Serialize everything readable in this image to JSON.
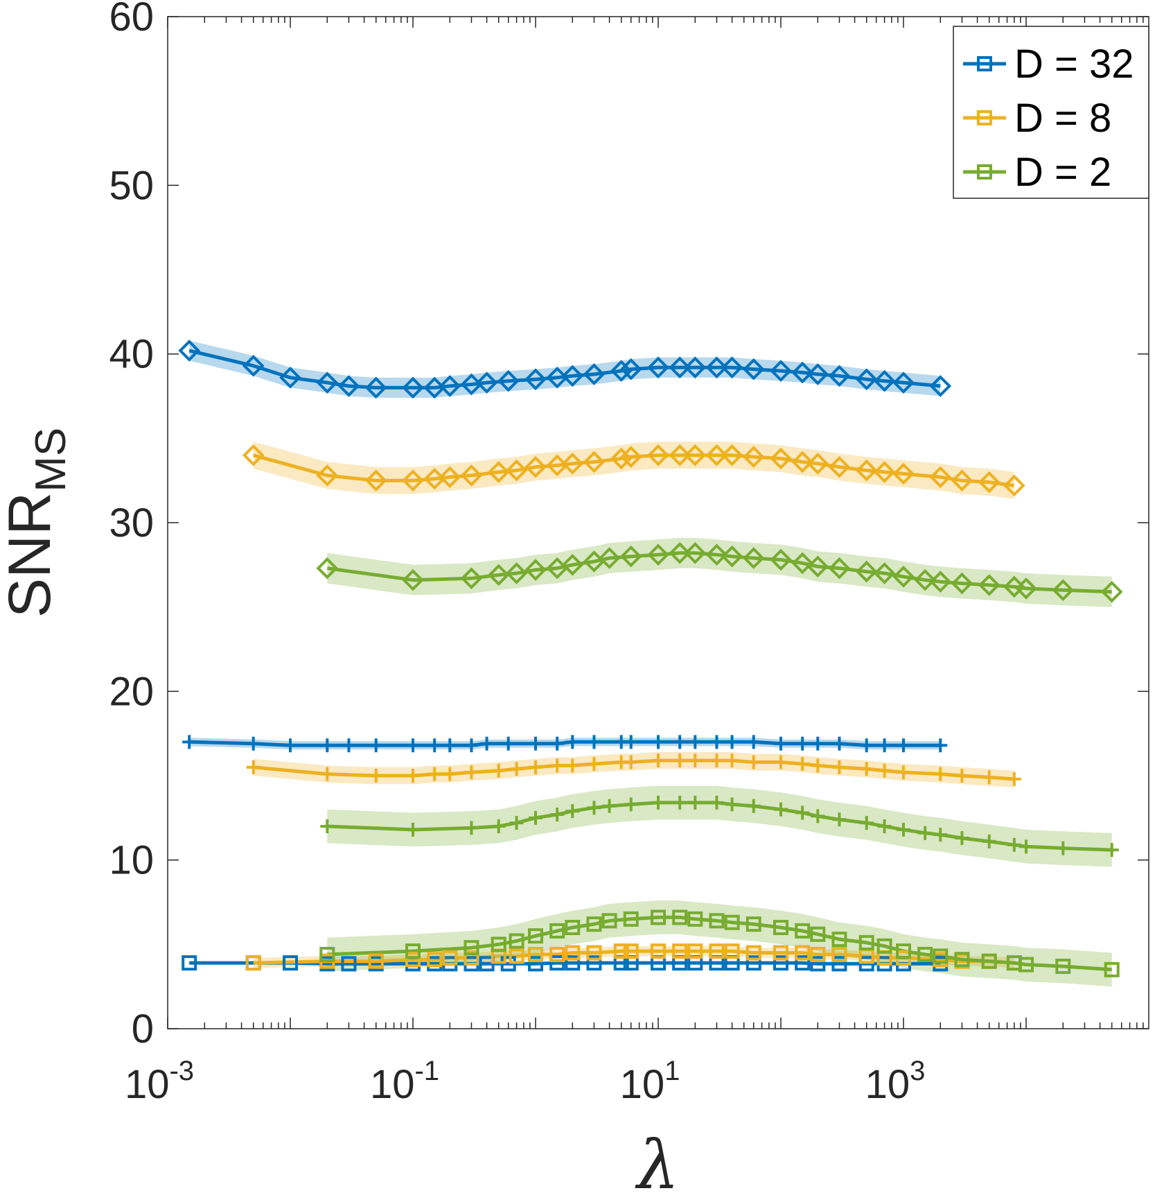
{
  "chart_data": {
    "type": "line",
    "xlabel": "λ",
    "ylabel": "SNR",
    "ylabel_subscript": "MS",
    "xscale": "log",
    "xlim": [
      0.001,
      100000
    ],
    "ylim": [
      0,
      60
    ],
    "xticks": [
      {
        "value": 0.001,
        "base": "10",
        "exp": "-3"
      },
      {
        "value": 0.1,
        "base": "10",
        "exp": "-1"
      },
      {
        "value": 10,
        "base": "10",
        "exp": "1"
      },
      {
        "value": 1000,
        "base": "10",
        "exp": "3"
      }
    ],
    "yticks": [
      "0",
      "10",
      "20",
      "30",
      "40",
      "50",
      "60"
    ],
    "grid": false,
    "legend_position": "top-right",
    "legend": [
      {
        "label": "D = 32",
        "color": "#0072BD"
      },
      {
        "label": "D = 8",
        "color": "#EDB120"
      },
      {
        "label": "D = 2",
        "color": "#77AC30"
      }
    ],
    "series": [
      {
        "D": "32",
        "color": "#0072BD",
        "marker": "diamond",
        "x": [
          0.0015,
          0.005,
          0.01,
          0.02,
          0.03,
          0.05,
          0.1,
          0.15,
          0.2,
          0.3,
          0.4,
          0.6,
          1,
          1.5,
          2,
          3,
          5,
          6,
          10,
          15,
          20,
          30,
          40,
          60,
          100,
          150,
          200,
          300,
          500,
          700,
          1000,
          2000
        ],
        "y": [
          40.2,
          39.3,
          38.6,
          38.3,
          38.1,
          38.0,
          38.0,
          38.0,
          38.1,
          38.2,
          38.3,
          38.4,
          38.5,
          38.6,
          38.7,
          38.8,
          39.0,
          39.1,
          39.2,
          39.2,
          39.2,
          39.2,
          39.2,
          39.1,
          39.0,
          38.9,
          38.8,
          38.7,
          38.5,
          38.4,
          38.3,
          38.1
        ],
        "band": 0.6
      },
      {
        "D": "8",
        "color": "#EDB120",
        "marker": "diamond",
        "x": [
          0.005,
          0.02,
          0.05,
          0.1,
          0.15,
          0.2,
          0.3,
          0.5,
          0.7,
          1,
          1.5,
          2,
          3,
          5,
          6,
          10,
          15,
          20,
          30,
          40,
          60,
          100,
          150,
          200,
          300,
          500,
          700,
          1000,
          2000,
          3000,
          5000,
          8000
        ],
        "y": [
          34.0,
          32.8,
          32.5,
          32.5,
          32.6,
          32.7,
          32.8,
          33.0,
          33.1,
          33.3,
          33.4,
          33.5,
          33.6,
          33.8,
          33.9,
          34.0,
          34.0,
          34.0,
          34.0,
          34.0,
          33.9,
          33.8,
          33.6,
          33.5,
          33.3,
          33.1,
          33.0,
          32.9,
          32.7,
          32.5,
          32.4,
          32.2
        ],
        "band": 0.8
      },
      {
        "D": "2",
        "color": "#77AC30",
        "marker": "diamond",
        "x": [
          0.02,
          0.1,
          0.3,
          0.5,
          0.7,
          1,
          1.5,
          2,
          3,
          4,
          6,
          10,
          15,
          20,
          30,
          40,
          60,
          100,
          150,
          200,
          300,
          500,
          700,
          1000,
          1500,
          2000,
          3000,
          5000,
          8000,
          10000,
          20000,
          50000
        ],
        "y": [
          27.3,
          26.6,
          26.7,
          26.9,
          27.0,
          27.2,
          27.3,
          27.5,
          27.7,
          27.9,
          28.0,
          28.1,
          28.2,
          28.2,
          28.1,
          28.0,
          27.9,
          27.8,
          27.6,
          27.4,
          27.3,
          27.1,
          27.0,
          26.8,
          26.6,
          26.5,
          26.4,
          26.3,
          26.2,
          26.1,
          26.0,
          25.9
        ],
        "band": 0.9
      },
      {
        "D": "32",
        "color": "#0072BD",
        "marker": "plus",
        "x": [
          0.0015,
          0.005,
          0.01,
          0.02,
          0.03,
          0.05,
          0.1,
          0.15,
          0.2,
          0.3,
          0.4,
          0.6,
          1,
          1.5,
          2,
          3,
          5,
          6,
          10,
          15,
          20,
          30,
          40,
          60,
          100,
          150,
          200,
          300,
          500,
          700,
          1000,
          2000
        ],
        "y": [
          17.0,
          16.9,
          16.8,
          16.8,
          16.8,
          16.8,
          16.8,
          16.8,
          16.8,
          16.8,
          16.9,
          16.9,
          16.9,
          16.9,
          17.0,
          17.0,
          17.0,
          17.0,
          17.0,
          17.0,
          17.0,
          17.0,
          17.0,
          17.0,
          16.9,
          16.9,
          16.9,
          16.9,
          16.8,
          16.8,
          16.8,
          16.8
        ],
        "band": 0.25
      },
      {
        "D": "8",
        "color": "#EDB120",
        "marker": "plus",
        "x": [
          0.005,
          0.02,
          0.05,
          0.1,
          0.15,
          0.2,
          0.3,
          0.5,
          0.7,
          1,
          1.5,
          2,
          3,
          5,
          6,
          10,
          15,
          20,
          30,
          40,
          60,
          100,
          150,
          200,
          300,
          500,
          700,
          1000,
          2000,
          3000,
          5000,
          8000
        ],
        "y": [
          15.5,
          15.1,
          15.0,
          15.0,
          15.1,
          15.1,
          15.2,
          15.3,
          15.4,
          15.5,
          15.6,
          15.6,
          15.7,
          15.8,
          15.8,
          15.9,
          15.9,
          15.9,
          15.9,
          15.9,
          15.8,
          15.8,
          15.7,
          15.6,
          15.5,
          15.4,
          15.3,
          15.2,
          15.1,
          15.0,
          14.9,
          14.8
        ],
        "band": 0.5
      },
      {
        "D": "2",
        "color": "#77AC30",
        "marker": "plus",
        "x": [
          0.02,
          0.1,
          0.3,
          0.5,
          0.7,
          1,
          1.5,
          2,
          3,
          4,
          6,
          10,
          15,
          20,
          30,
          40,
          60,
          100,
          150,
          200,
          300,
          500,
          700,
          1000,
          1500,
          2000,
          3000,
          5000,
          8000,
          10000,
          20000,
          50000
        ],
        "y": [
          12.0,
          11.8,
          11.9,
          12.0,
          12.2,
          12.5,
          12.7,
          12.9,
          13.1,
          13.2,
          13.3,
          13.4,
          13.4,
          13.4,
          13.4,
          13.3,
          13.2,
          13.0,
          12.8,
          12.6,
          12.4,
          12.2,
          12.0,
          11.8,
          11.6,
          11.5,
          11.3,
          11.1,
          10.9,
          10.8,
          10.7,
          10.6
        ],
        "band": 1.0
      },
      {
        "D": "32",
        "color": "#0072BD",
        "marker": "square",
        "x": [
          0.0015,
          0.005,
          0.01,
          0.02,
          0.03,
          0.05,
          0.1,
          0.15,
          0.2,
          0.3,
          0.4,
          0.6,
          1,
          1.5,
          2,
          3,
          5,
          6,
          10,
          15,
          20,
          30,
          40,
          60,
          100,
          150,
          200,
          300,
          500,
          700,
          1000,
          2000
        ],
        "y": [
          3.9,
          3.9,
          3.9,
          3.85,
          3.85,
          3.85,
          3.85,
          3.85,
          3.85,
          3.85,
          3.85,
          3.85,
          3.85,
          3.9,
          3.9,
          3.9,
          3.9,
          3.9,
          3.9,
          3.9,
          3.9,
          3.9,
          3.9,
          3.9,
          3.9,
          3.9,
          3.85,
          3.85,
          3.85,
          3.85,
          3.85,
          3.85
        ],
        "band": 0.1
      },
      {
        "D": "8",
        "color": "#EDB120",
        "marker": "square",
        "x": [
          0.005,
          0.02,
          0.05,
          0.1,
          0.15,
          0.2,
          0.3,
          0.5,
          0.7,
          1,
          1.5,
          2,
          3,
          5,
          6,
          10,
          15,
          20,
          30,
          40,
          60,
          100,
          150,
          200,
          300,
          500,
          700,
          1000,
          2000,
          3000,
          5000,
          8000
        ],
        "y": [
          3.9,
          4.0,
          4.0,
          4.1,
          4.1,
          4.2,
          4.2,
          4.3,
          4.3,
          4.4,
          4.4,
          4.5,
          4.5,
          4.6,
          4.6,
          4.6,
          4.6,
          4.6,
          4.6,
          4.6,
          4.5,
          4.5,
          4.5,
          4.4,
          4.4,
          4.3,
          4.2,
          4.2,
          4.1,
          4.0,
          4.0,
          3.9
        ],
        "band": 0.3
      },
      {
        "D": "2",
        "color": "#77AC30",
        "marker": "square",
        "x": [
          0.02,
          0.1,
          0.3,
          0.5,
          0.7,
          1,
          1.5,
          2,
          3,
          4,
          6,
          10,
          15,
          20,
          30,
          40,
          60,
          100,
          150,
          200,
          300,
          500,
          700,
          1000,
          1500,
          2000,
          3000,
          5000,
          8000,
          10000,
          20000,
          50000
        ],
        "y": [
          4.4,
          4.6,
          4.8,
          5.0,
          5.2,
          5.5,
          5.8,
          6.0,
          6.2,
          6.4,
          6.5,
          6.6,
          6.6,
          6.5,
          6.4,
          6.3,
          6.2,
          6.0,
          5.8,
          5.6,
          5.3,
          5.1,
          4.9,
          4.6,
          4.4,
          4.3,
          4.1,
          4.0,
          3.9,
          3.8,
          3.7,
          3.5
        ],
        "band": 1.0
      }
    ]
  }
}
